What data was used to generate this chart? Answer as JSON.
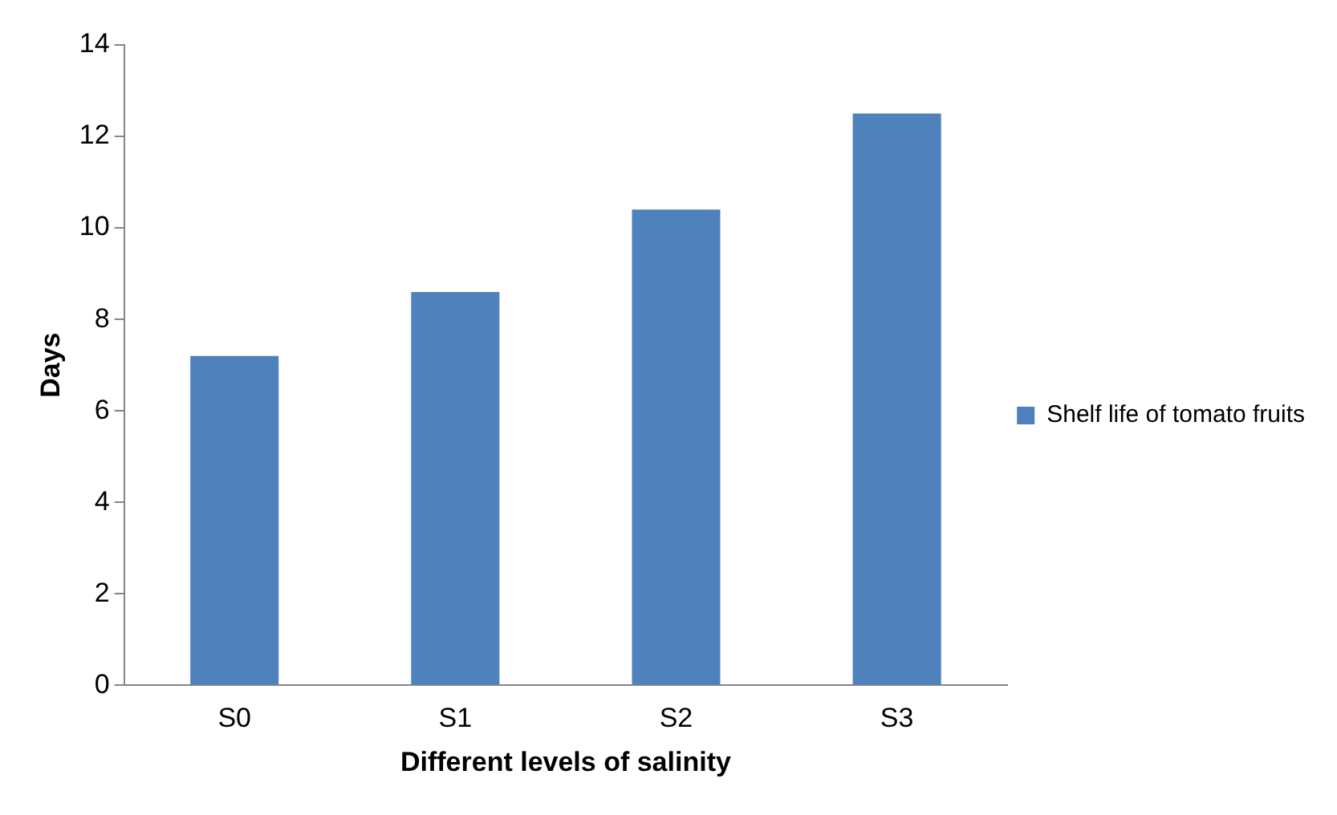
{
  "chart_data": {
    "type": "bar",
    "xlabel": "Different levels of salinity",
    "ylabel": "Days",
    "categories": [
      "S0",
      "S1",
      "S2",
      "S3"
    ],
    "series": [
      {
        "name": "Shelf life of tomato fruits",
        "color": "#4f81bd",
        "values": [
          7.2,
          8.6,
          10.4,
          12.5
        ]
      }
    ],
    "ylim": [
      0,
      14
    ],
    "yticks": [
      0,
      2,
      4,
      6,
      8,
      10,
      12,
      14
    ],
    "grid": false,
    "legend": "right"
  }
}
